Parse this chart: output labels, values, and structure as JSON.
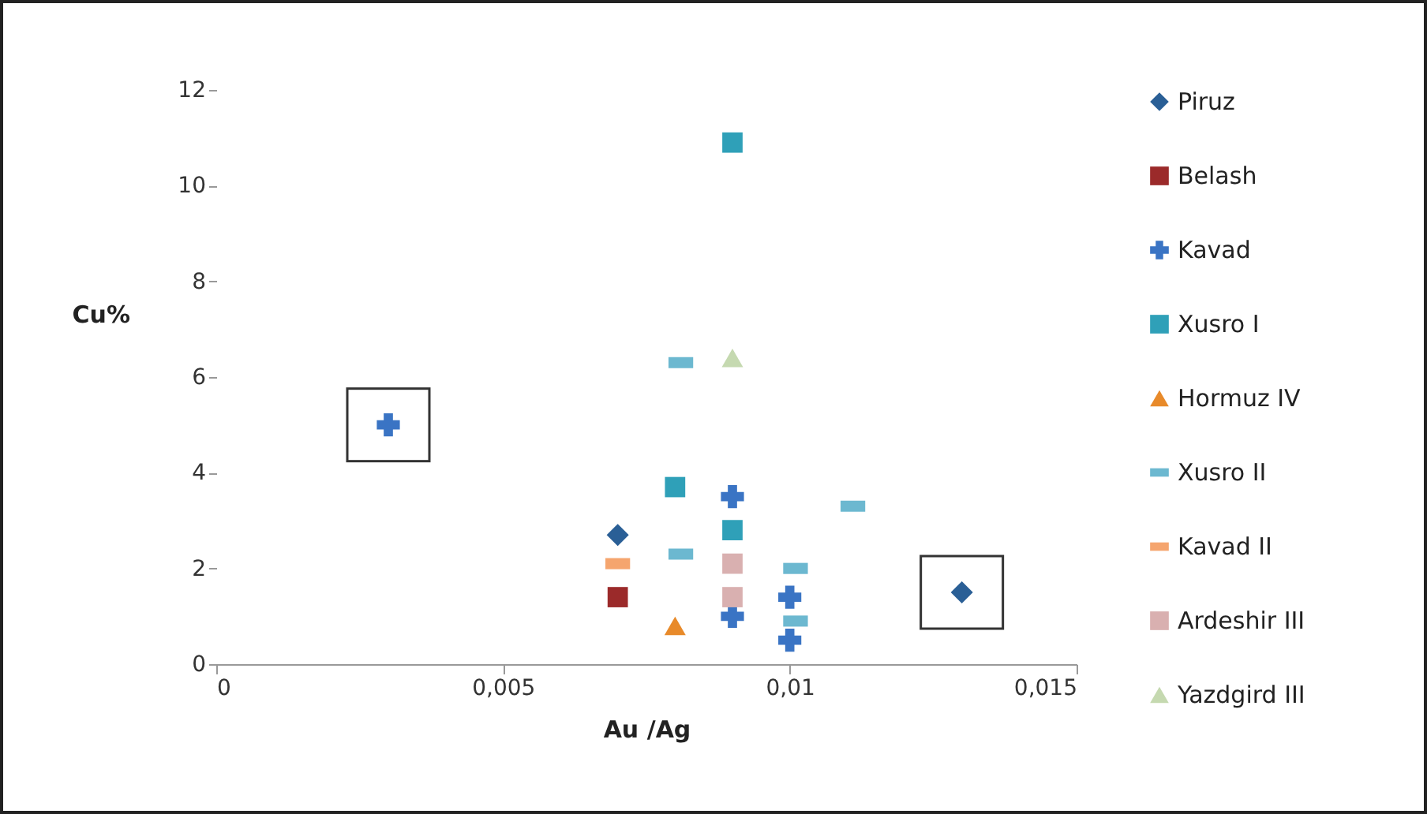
{
  "chart_data": {
    "type": "scatter",
    "xlabel": "Au /Ag",
    "ylabel": "Cu%",
    "xlim": [
      0,
      0.015
    ],
    "xticks": [
      0,
      {
        "value": 0.005,
        "label": "0,005"
      },
      {
        "value": 0.01,
        "label": "0,01"
      },
      {
        "value": 0.015,
        "label": "0,015"
      }
    ],
    "ylim": [
      0,
      12
    ],
    "yticks": [
      0,
      2,
      4,
      6,
      8,
      10,
      12
    ],
    "grid": false,
    "legend": "right",
    "series": [
      {
        "name": "Piruz",
        "color": "#2a5f96",
        "marker": "diamond",
        "x": [
          0.007,
          0.013
        ],
        "values": [
          2.7,
          1.5
        ]
      },
      {
        "name": "Belash",
        "color": "#9b2a2a",
        "marker": "square",
        "x": [
          0.007
        ],
        "values": [
          1.4
        ]
      },
      {
        "name": "Kavad",
        "color": "#3a74c4",
        "marker": "cross",
        "x": [
          0.003,
          0.009,
          0.009,
          0.01,
          0.01
        ],
        "values": [
          5.0,
          3.5,
          1.0,
          1.4,
          0.5
        ]
      },
      {
        "name": "Xusro I",
        "color": "#2fa0b8",
        "marker": "square",
        "x": [
          0.009,
          0.008,
          0.009
        ],
        "values": [
          10.9,
          3.7,
          2.8
        ]
      },
      {
        "name": "Hormuz IV",
        "color": "#e88a2a",
        "marker": "triangle",
        "x": [
          0.008
        ],
        "values": [
          0.8
        ]
      },
      {
        "name": "Xusro II",
        "color": "#6cb8d0",
        "marker": "square",
        "x": [
          0.0081,
          0.0081,
          0.0111,
          0.0101,
          0.0101
        ],
        "values": [
          6.3,
          2.3,
          3.3,
          2.0,
          0.9
        ]
      },
      {
        "name": "Kavad II",
        "color": "#f5a56e",
        "marker": "square",
        "x": [
          0.007
        ],
        "values": [
          2.1
        ]
      },
      {
        "name": "Ardeshir III",
        "color": "#d9b0b0",
        "marker": "square",
        "x": [
          0.009,
          0.009
        ],
        "values": [
          2.1,
          1.4
        ]
      },
      {
        "name": "Yazdgird III",
        "color": "#c5d9b0",
        "marker": "triangle",
        "x": [
          0.009
        ],
        "values": [
          6.4
        ]
      }
    ]
  }
}
